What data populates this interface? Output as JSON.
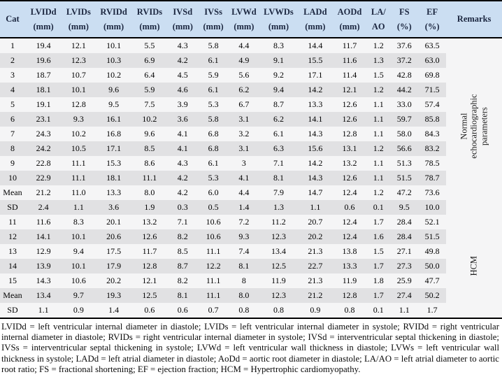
{
  "table": {
    "column_headers": [
      [
        "Cat"
      ],
      [
        "LVIDd",
        "(mm)"
      ],
      [
        "LVIDs",
        "(mm)"
      ],
      [
        "RVIDd",
        "(mm)"
      ],
      [
        "RVIDs",
        "(mm)"
      ],
      [
        "IVSd",
        "(mm)"
      ],
      [
        "IVSs",
        "(mm)"
      ],
      [
        "LVWd",
        "(mm)"
      ],
      [
        "LVWDs",
        "(mm)"
      ],
      [
        "LADd",
        "(mm)"
      ],
      [
        "AODd",
        "(mm)"
      ],
      [
        "LA/",
        "AO"
      ],
      [
        "FS",
        "(%)"
      ],
      [
        "EF",
        "(%)"
      ],
      [
        "Remarks"
      ]
    ],
    "groups": [
      {
        "remark": "Normal echocardiographic parameters",
        "rows": [
          [
            "1",
            "19.4",
            "12.1",
            "10.1",
            "5.5",
            "4.3",
            "5.8",
            "4.4",
            "8.3",
            "14.4",
            "11.7",
            "1.2",
            "37.6",
            "63.5"
          ],
          [
            "2",
            "19.6",
            "12.3",
            "10.3",
            "6.9",
            "4.2",
            "6.1",
            "4.9",
            "9.1",
            "15.5",
            "11.6",
            "1.3",
            "37.2",
            "63.0"
          ],
          [
            "3",
            "18.7",
            "10.7",
            "10.2",
            "6.4",
            "4.5",
            "5.9",
            "5.6",
            "9.2",
            "17.1",
            "11.4",
            "1.5",
            "42.8",
            "69.8"
          ],
          [
            "4",
            "18.1",
            "10.1",
            "9.6",
            "5.9",
            "4.6",
            "6.1",
            "6.2",
            "9.4",
            "14.2",
            "12.1",
            "1.2",
            "44.2",
            "71.5"
          ],
          [
            "5",
            "19.1",
            "12.8",
            "9.5",
            "7.5",
            "3.9",
            "5.3",
            "6.7",
            "8.7",
            "13.3",
            "12.6",
            "1.1",
            "33.0",
            "57.4"
          ],
          [
            "6",
            "23.1",
            "9.3",
            "16.1",
            "10.2",
            "3.6",
            "5.8",
            "3.1",
            "6.2",
            "14.1",
            "12.6",
            "1.1",
            "59.7",
            "85.8"
          ],
          [
            "7",
            "24.3",
            "10.2",
            "16.8",
            "9.6",
            "4.1",
            "6.8",
            "3.2",
            "6.1",
            "14.3",
            "12.8",
            "1.1",
            "58.0",
            "84.3"
          ],
          [
            "8",
            "24.2",
            "10.5",
            "17.1",
            "8.5",
            "4.1",
            "6.8",
            "3.1",
            "6.3",
            "15.6",
            "13.1",
            "1.2",
            "56.6",
            "83.2"
          ],
          [
            "9",
            "22.8",
            "11.1",
            "15.3",
            "8.6",
            "4.3",
            "6.1",
            "3",
            "7.1",
            "14.2",
            "13.2",
            "1.1",
            "51.3",
            "78.5"
          ],
          [
            "10",
            "22.9",
            "11.1",
            "18.1",
            "11.1",
            "4.2",
            "5.3",
            "4.1",
            "8.1",
            "14.3",
            "12.6",
            "1.1",
            "51.5",
            "78.7"
          ],
          [
            "Mean",
            "21.2",
            "11.0",
            "13.3",
            "8.0",
            "4.2",
            "6.0",
            "4.4",
            "7.9",
            "14.7",
            "12.4",
            "1.2",
            "47.2",
            "73.6"
          ],
          [
            "SD",
            "2.4",
            "1.1",
            "3.6",
            "1.9",
            "0.3",
            "0.5",
            "1.4",
            "1.3",
            "1.1",
            "0.6",
            "0.1",
            "9.5",
            "10.0"
          ]
        ]
      },
      {
        "remark": "HCM",
        "rows": [
          [
            "11",
            "11.6",
            "8.3",
            "20.1",
            "13.2",
            "7.1",
            "10.6",
            "7.2",
            "11.2",
            "20.7",
            "12.4",
            "1.7",
            "28.4",
            "52.1"
          ],
          [
            "12",
            "14.1",
            "10.1",
            "20.6",
            "12.6",
            "8.2",
            "10.6",
            "9.3",
            "12.3",
            "20.2",
            "12.4",
            "1.6",
            "28.4",
            "51.5"
          ],
          [
            "13",
            "12.9",
            "9.4",
            "17.5",
            "11.7",
            "8.5",
            "11.1",
            "7.4",
            "13.4",
            "21.3",
            "13.8",
            "1.5",
            "27.1",
            "49.8"
          ],
          [
            "14",
            "13.9",
            "10.1",
            "17.9",
            "12.8",
            "8.7",
            "12.2",
            "8.1",
            "12.5",
            "22.7",
            "13.3",
            "1.7",
            "27.3",
            "50.0"
          ],
          [
            "15",
            "14.3",
            "10.6",
            "20.2",
            "12.1",
            "8.2",
            "11.1",
            "8",
            "11.9",
            "21.3",
            "11.9",
            "1.8",
            "25.9",
            "47.7"
          ],
          [
            "Mean",
            "13.4",
            "9.7",
            "19.3",
            "12.5",
            "8.1",
            "11.1",
            "8.0",
            "12.3",
            "21.2",
            "12.8",
            "1.7",
            "27.4",
            "50.2"
          ],
          [
            "SD",
            "1.1",
            "0.9",
            "1.4",
            "0.6",
            "0.6",
            "0.7",
            "0.8",
            "0.8",
            "0.9",
            "0.8",
            "0.1",
            "1.1",
            "1.7"
          ]
        ]
      }
    ],
    "footnote": "LVIDd = left ventricular internal diameter in diastole; LVIDs = left ventricular internal diameter in systole; RVIDd = right ventricular internal diameter in diastole; RVIDs = right ventricular internal diameter in systole; IVSd = interventricular septal thickening in diastole; IVSs = interventricular septal thickening in systole; LVWd = left ventricular wall thickness in diastole; LVWs = left ventricular wall thickness in systole; LADd = left atrial diameter in diastole; AoDd = aortic root diameter in diastole; LA/AO = left atrial diameter to aortic root ratio; FS = fractional shortening; EF = ejection fraction; HCM = Hypertrophic cardiomyopathy."
  },
  "colors": {
    "header_bg": "#cbdef2",
    "header_text": "#1c2740",
    "row_light": "#f5f5f6",
    "row_dark": "#e1e1e3",
    "border": "#000000"
  }
}
